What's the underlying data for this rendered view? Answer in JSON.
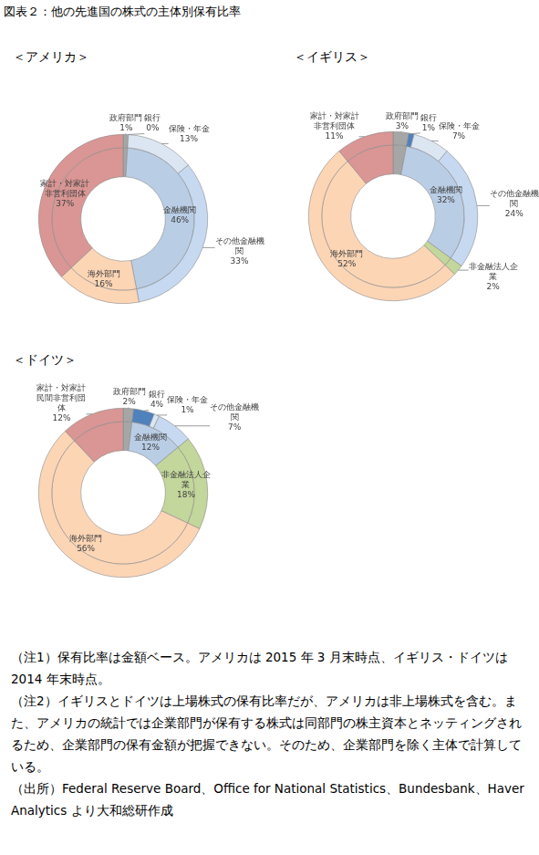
{
  "title": "図表２：他の先進国の株式の主体別保有比率",
  "chart_data": [
    {
      "type": "doughnut",
      "title": "＜アメリカ＞",
      "categories": [
        "政府部門",
        "銀行",
        "保険・年金",
        "その他金融機関",
        "海外部門",
        "家計・対家計非営利団体"
      ],
      "values": [
        1,
        0,
        13,
        33,
        16,
        37
      ],
      "value_labels": [
        "1%",
        "0%",
        "13%",
        "33%",
        "16%",
        "37%"
      ],
      "colors": [
        "#a6a6a6",
        "#4f81bd",
        "#dce6f2",
        "#c6d9f1",
        "#fcd5b5",
        "#d99694"
      ],
      "group": {
        "name": "金融機関",
        "value": 46,
        "value_label": "46%",
        "color": "#b9cde5",
        "members": [
          "銀行",
          "保険・年金",
          "その他金融機関"
        ]
      }
    },
    {
      "type": "doughnut",
      "title": "＜イギリス＞",
      "categories": [
        "政府部門",
        "銀行",
        "保険・年金",
        "その他金融機関",
        "非金融法人企業",
        "海外部門",
        "家計・対家計非営利団体"
      ],
      "values": [
        3,
        1,
        7,
        24,
        2,
        52,
        11
      ],
      "value_labels": [
        "3%",
        "1%",
        "7%",
        "24%",
        "2%",
        "52%",
        "11%"
      ],
      "colors": [
        "#a6a6a6",
        "#4f81bd",
        "#dce6f2",
        "#c6d9f1",
        "#c3d69b",
        "#fcd5b5",
        "#d99694"
      ],
      "group": {
        "name": "金融機関",
        "value": 32,
        "value_label": "32%",
        "color": "#b9cde5",
        "members": [
          "銀行",
          "保険・年金",
          "その他金融機関"
        ]
      }
    },
    {
      "type": "doughnut",
      "title": "＜ドイツ＞",
      "categories": [
        "政府部門",
        "銀行",
        "保険・年金",
        "その他金融機関",
        "非金融法人企業",
        "海外部門",
        "家計・対家計民間非営利団体"
      ],
      "values": [
        2,
        4,
        1,
        7,
        18,
        56,
        12
      ],
      "value_labels": [
        "2%",
        "4%",
        "1%",
        "7%",
        "18%",
        "56%",
        "12%"
      ],
      "colors": [
        "#a6a6a6",
        "#4f81bd",
        "#dce6f2",
        "#c6d9f1",
        "#c3d69b",
        "#fcd5b5",
        "#d99694"
      ],
      "group": {
        "name": "金融機関",
        "value": 12,
        "value_label": "12%",
        "color": "#b9cde5",
        "members": [
          "銀行",
          "保険・年金",
          "その他金融機関"
        ]
      }
    }
  ],
  "notes": [
    "（注1）保有比率は金額ベース。アメリカは 2015 年 3 月末時点、イギリス・ドイツは 2014 年末時点。",
    "（注2）イギリスとドイツは上場株式の保有比率だが、アメリカは非上場株式を含む。また、アメリカの統計では企業部門が保有する株式は同部門の株主資本とネッティングされるため、企業部門の保有金額が把握できない。そのため、企業部門を除く主体で計算している。",
    "（出所）Federal Reserve Board、Office for National Statistics、Bundesbank、Haver Analytics より大和総研作成"
  ]
}
